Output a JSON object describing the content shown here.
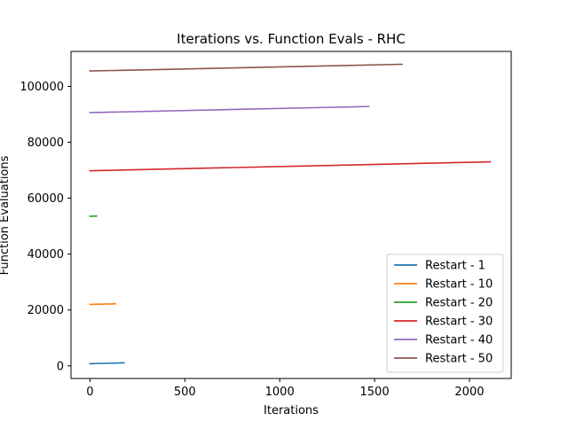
{
  "chart_data": {
    "type": "line",
    "title": "Iterations vs. Function Evals - RHC",
    "xlabel": "Iterations",
    "ylabel": "Function Evaluations",
    "xlim": [
      -100,
      2220
    ],
    "ylim": [
      -4500,
      112500
    ],
    "xticks": [
      0,
      500,
      1000,
      1500,
      2000
    ],
    "yticks": [
      0,
      20000,
      40000,
      60000,
      80000,
      100000
    ],
    "grid": false,
    "legend_position": "lower-right",
    "series": [
      {
        "name": "Restart - 1",
        "color": "#1f77b4",
        "x": [
          0,
          180
        ],
        "y": [
          800,
          1100
        ]
      },
      {
        "name": "Restart - 10",
        "color": "#ff7f0e",
        "x": [
          0,
          135
        ],
        "y": [
          22000,
          22200
        ]
      },
      {
        "name": "Restart - 20",
        "color": "#2ca02c",
        "x": [
          0,
          35
        ],
        "y": [
          53500,
          53600
        ]
      },
      {
        "name": "Restart - 30",
        "color": "#d62728",
        "x": [
          0,
          2110
        ],
        "y": [
          69800,
          73000
        ]
      },
      {
        "name": "Restart - 40",
        "color": "#9467bd",
        "x": [
          0,
          1470
        ],
        "y": [
          90600,
          92800
        ]
      },
      {
        "name": "Restart - 50",
        "color": "#8c564b",
        "x": [
          0,
          1645
        ],
        "y": [
          105500,
          107900
        ]
      }
    ]
  }
}
